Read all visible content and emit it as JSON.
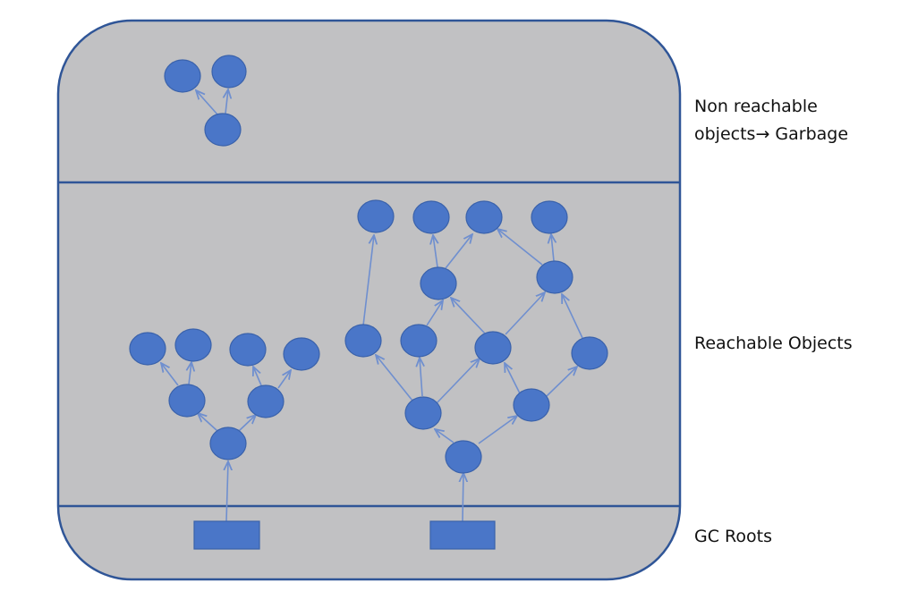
{
  "labels": {
    "garbage_line1": "Non reachable",
    "garbage_line2": "objects→ Garbage",
    "reachable": "Reachable Objects",
    "gc_roots": "GC Roots"
  },
  "colors": {
    "panel_fill": "#c1c1c3",
    "panel_border": "#2f5597",
    "node_fill": "#4a76c8",
    "node_stroke": "#3a62ab",
    "edge": "#6f8fcf"
  }
}
